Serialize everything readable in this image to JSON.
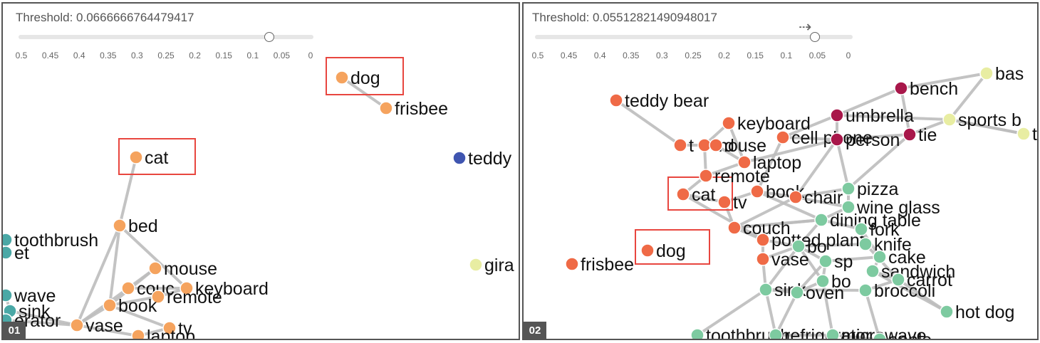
{
  "colors": {
    "edge": "#bcbcbc",
    "highlight": "#e8463f",
    "panel_border": "#555555",
    "badge_bg": "#555555",
    "orange": "#f5a35e",
    "red_orange": "#ef6a46",
    "green": "#7dcaa0",
    "crimson": "#a8174a",
    "yellow": "#e8eda2",
    "blue": "#3f55b0",
    "teal": "#4aa8a6"
  },
  "panels": [
    {
      "number": "01",
      "threshold_text": "Threshold: 0.0666666764479417",
      "slider_value": 0.0666666764479417,
      "tick_labels": [
        "0.5",
        "0.45",
        "0.4",
        "0.35",
        "0.3",
        "0.25",
        "0.2",
        "0.15",
        "0.1",
        "0.05",
        "0"
      ],
      "nodes": [
        {
          "label": "dog",
          "color": "orange",
          "highlighted": true
        },
        {
          "label": "frisbee",
          "color": "orange"
        },
        {
          "label": "cat",
          "color": "orange",
          "highlighted": true
        },
        {
          "label": "teddy",
          "color": "blue"
        },
        {
          "label": "bed",
          "color": "orange"
        },
        {
          "label": "toothbrush",
          "color": "teal"
        },
        {
          "label": "et",
          "color": "teal"
        },
        {
          "label": "gira",
          "color": "yellow"
        },
        {
          "label": "mouse",
          "color": "orange"
        },
        {
          "label": "couc",
          "color": "orange"
        },
        {
          "label": "keyboard",
          "color": "orange"
        },
        {
          "label": "remote",
          "color": "orange"
        },
        {
          "label": "book",
          "color": "orange"
        },
        {
          "label": "wave",
          "color": "teal"
        },
        {
          "label": "sink",
          "color": "teal"
        },
        {
          "label": "erator",
          "color": "teal"
        },
        {
          "label": "vase",
          "color": "orange"
        },
        {
          "label": "tv",
          "color": "orange"
        },
        {
          "label": "laptop",
          "color": "orange"
        }
      ]
    },
    {
      "number": "02",
      "threshold_text": "Threshold: 0.05512821490948017",
      "slider_value": 0.05512821490948017,
      "tick_labels": [
        "0.5",
        "0.45",
        "0.4",
        "0.35",
        "0.3",
        "0.25",
        "0.2",
        "0.15",
        "0.1",
        "0.05",
        "0"
      ],
      "nodes": [
        {
          "label": "teddy bear",
          "color": "red_orange"
        },
        {
          "label": "keyboard",
          "color": "red_orange"
        },
        {
          "label": "t",
          "color": "red_orange"
        },
        {
          "label": "mouse",
          "color": "red_orange"
        },
        {
          "label": "d",
          "color": "red_orange"
        },
        {
          "label": "cell phone",
          "color": "red_orange"
        },
        {
          "label": "laptop",
          "color": "red_orange"
        },
        {
          "label": "remote",
          "color": "red_orange"
        },
        {
          "label": "cat",
          "color": "red_orange",
          "highlighted": true
        },
        {
          "label": "tv",
          "color": "red_orange"
        },
        {
          "label": "book",
          "color": "red_orange"
        },
        {
          "label": "chair",
          "color": "red_orange"
        },
        {
          "label": "couch",
          "color": "red_orange"
        },
        {
          "label": "potted plant",
          "color": "red_orange"
        },
        {
          "label": "vase",
          "color": "red_orange"
        },
        {
          "label": "dog",
          "color": "red_orange",
          "highlighted": true
        },
        {
          "label": "frisbee",
          "color": "red_orange"
        },
        {
          "label": "bench",
          "color": "crimson"
        },
        {
          "label": "umbrella",
          "color": "crimson"
        },
        {
          "label": "person",
          "color": "crimson"
        },
        {
          "label": "tie",
          "color": "crimson"
        },
        {
          "label": "bas",
          "color": "yellow"
        },
        {
          "label": "sports b",
          "color": "yellow"
        },
        {
          "label": "t",
          "color": "yellow"
        },
        {
          "label": "pizza",
          "color": "green"
        },
        {
          "label": "wine glass",
          "color": "green"
        },
        {
          "label": "dining table",
          "color": "green"
        },
        {
          "label": "fork",
          "color": "green"
        },
        {
          "label": "knife",
          "color": "green"
        },
        {
          "label": "bo",
          "color": "green"
        },
        {
          "label": "sp",
          "color": "green"
        },
        {
          "label": "cake",
          "color": "green"
        },
        {
          "label": "sandwich",
          "color": "green"
        },
        {
          "label": "carrot",
          "color": "green"
        },
        {
          "label": "bo",
          "color": "green"
        },
        {
          "label": "broccoli",
          "color": "green"
        },
        {
          "label": "sink",
          "color": "green"
        },
        {
          "label": "oven",
          "color": "green"
        },
        {
          "label": "hot dog",
          "color": "green"
        },
        {
          "label": "toothbrush",
          "color": "green"
        },
        {
          "label": "refrigerator",
          "color": "green"
        },
        {
          "label": "microwave",
          "color": "green"
        },
        {
          "label": "apple",
          "color": "green"
        }
      ]
    }
  ]
}
